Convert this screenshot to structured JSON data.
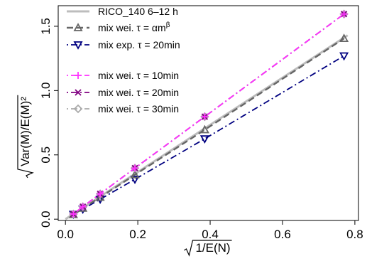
{
  "chart_data": {
    "type": "line",
    "xlabel": "1/E(N)",
    "ylabel": "Var(M)/E(M)²",
    "xlim": [
      -0.02,
      0.81
    ],
    "ylim": [
      -0.01,
      1.66
    ],
    "xticks": [
      0.0,
      0.2,
      0.4,
      0.6,
      0.8
    ],
    "xtick_labels": [
      "0.0",
      "0.2",
      "0.4",
      "0.6",
      "0.8"
    ],
    "yticks": [
      0.0,
      0.5,
      1.0,
      1.5
    ],
    "ytick_labels": [
      "0.0",
      "0.5",
      "1.0",
      "1.5"
    ],
    "grid": false,
    "legend_position": "top-left",
    "legend_groups": [
      [
        "RICO_140 6–12 h",
        "mix wei. τ = αm^β",
        "mix exp. τ = 20min"
      ],
      [
        "mix wei. τ = 10min",
        "mix wei. τ = 20min",
        "mix wei. τ = 30min"
      ]
    ],
    "x": [
      0.022,
      0.048,
      0.096,
      0.192,
      0.385,
      0.77
    ],
    "series": [
      {
        "name": "RICO_140 6–12 h",
        "color": "#bdbdbd",
        "line": "solid",
        "marker": "none",
        "x": [
          0.0,
          0.78
        ],
        "values": [
          0.0,
          1.43
        ]
      },
      {
        "name": "mix wei. τ = αm^β",
        "color": "#666666",
        "line": "dashed",
        "marker": "triangle-up",
        "values": [
          0.035,
          0.085,
          0.17,
          0.345,
          0.695,
          1.405
        ]
      },
      {
        "name": "mix exp. τ = 20min",
        "color": "#000080",
        "line": "dotdash",
        "marker": "triangle-down",
        "values": [
          0.038,
          0.078,
          0.155,
          0.31,
          0.625,
          1.27
        ]
      },
      {
        "name": "mix wei. τ = 10min",
        "color": "#ff33ff",
        "line": "dotdash",
        "marker": "plus",
        "values": [
          0.04,
          0.097,
          0.197,
          0.397,
          0.797,
          1.595
        ]
      },
      {
        "name": "mix wei. τ = 20min",
        "color": "#800080",
        "line": "dotdash",
        "marker": "cross",
        "values": [
          0.04,
          0.097,
          0.197,
          0.397,
          0.797,
          1.595
        ]
      },
      {
        "name": "mix wei. τ = 30min",
        "color": "#aaaaaa",
        "line": "dotdash",
        "marker": "diamond",
        "values": [
          0.04,
          0.097,
          0.197,
          0.397,
          0.797,
          1.595
        ]
      }
    ]
  }
}
